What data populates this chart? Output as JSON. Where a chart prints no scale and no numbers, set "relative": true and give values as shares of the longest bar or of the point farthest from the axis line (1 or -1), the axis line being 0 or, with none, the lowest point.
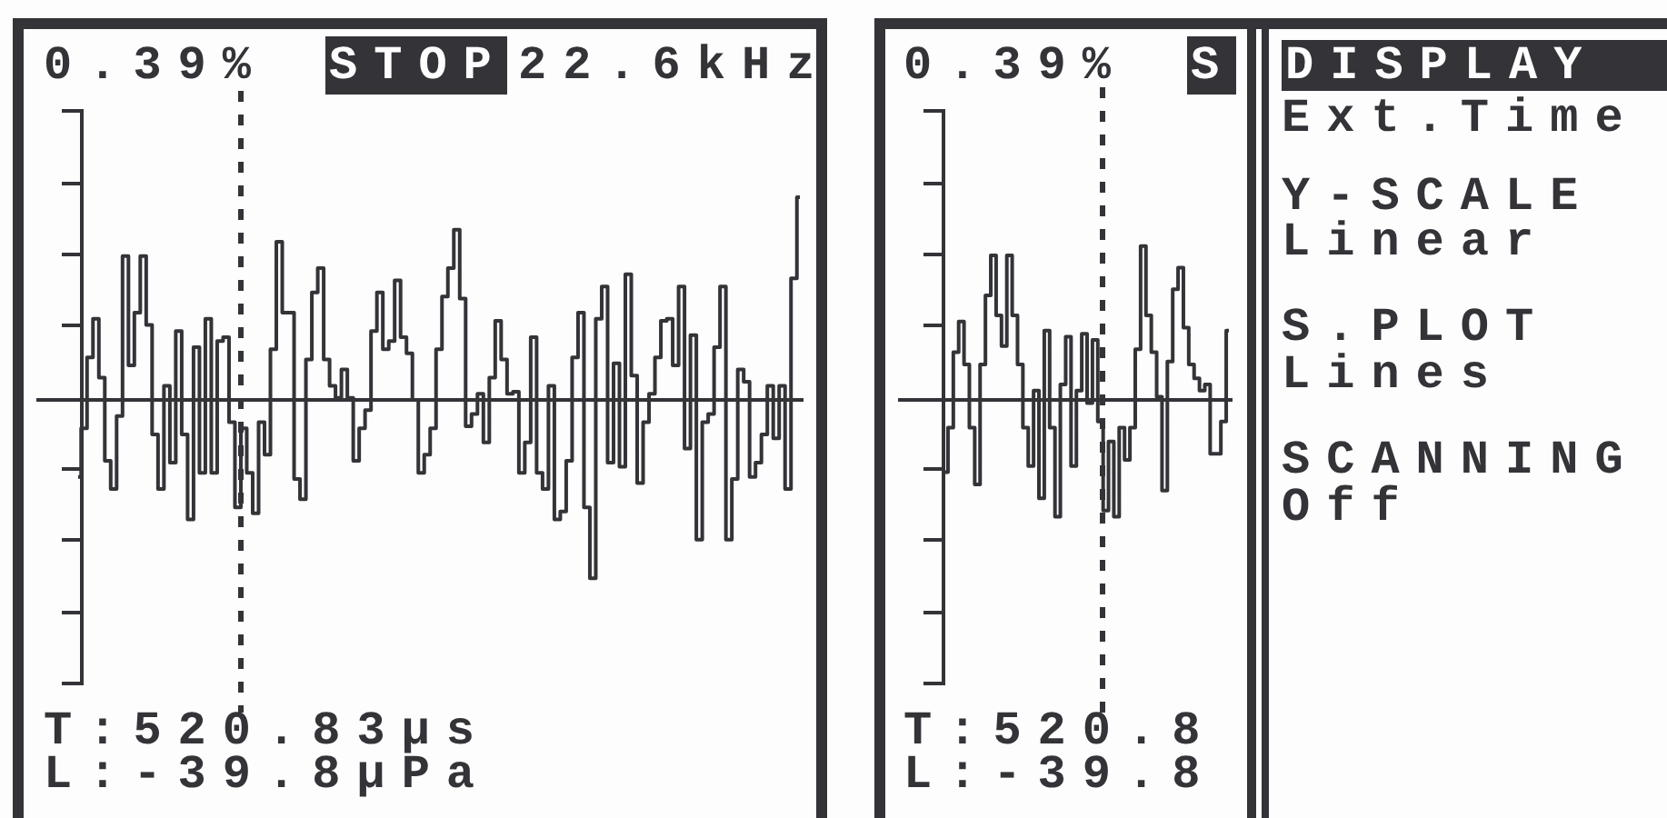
{
  "chart_data": [
    {
      "type": "step",
      "relative": true,
      "color": "#333338",
      "categories": [
        null,
        null,
        null,
        null,
        null,
        null,
        null,
        null,
        null,
        null,
        null,
        null,
        null,
        null,
        null,
        null,
        null,
        null,
        null,
        null,
        null,
        null,
        null,
        null,
        null,
        null,
        null,
        null,
        null,
        null,
        null,
        null,
        null,
        null,
        null,
        null,
        null,
        null,
        null,
        null,
        null,
        null,
        null,
        null,
        null,
        null,
        null,
        null,
        null,
        null,
        null,
        null,
        null,
        null,
        null,
        null,
        null,
        null,
        null,
        null,
        null,
        null,
        null,
        null,
        null,
        null,
        null,
        null,
        null,
        null,
        null,
        null,
        null,
        null,
        null,
        null,
        null,
        null,
        null,
        null,
        null,
        null,
        null,
        null,
        null,
        null,
        null,
        null,
        null,
        null,
        null,
        null,
        null,
        null,
        null,
        null,
        null,
        null,
        null,
        null,
        null,
        null,
        null,
        null,
        null,
        null,
        null,
        null,
        null,
        null,
        null,
        null,
        null,
        null,
        null,
        null,
        null,
        null,
        null,
        null,
        null,
        null,
        null
      ],
      "values": [
        -0.38,
        -0.14,
        0.21,
        0.4,
        0.11,
        -0.3,
        -0.44,
        -0.08,
        0.71,
        0.17,
        0.43,
        0.71,
        0.37,
        -0.17,
        -0.44,
        0.07,
        -0.31,
        0.34,
        -0.17,
        -0.59,
        0.26,
        -0.36,
        0.4,
        -0.36,
        0.29,
        0.31,
        -0.11,
        -0.53,
        -0.14,
        -0.36,
        -0.56,
        -0.11,
        -0.27,
        0.25,
        0.78,
        0.43,
        0.43,
        -0.39,
        -0.49,
        0.2,
        0.53,
        0.65,
        0.2,
        0.07,
        0.01,
        0.15,
        0.01,
        -0.3,
        -0.14,
        -0.05,
        0.34,
        0.53,
        0.25,
        0.29,
        0.59,
        0.31,
        0.23,
        0.0,
        -0.36,
        -0.27,
        -0.14,
        0.25,
        0.51,
        0.65,
        0.84,
        0.5,
        -0.13,
        -0.07,
        0.03,
        -0.21,
        0.11,
        0.39,
        0.2,
        0.03,
        0.04,
        -0.36,
        -0.21,
        0.31,
        -0.36,
        -0.44,
        0.07,
        -0.59,
        -0.55,
        -0.3,
        0.21,
        0.43,
        -0.53,
        -0.88,
        0.4,
        0.56,
        -0.31,
        0.18,
        -0.33,
        0.62,
        0.12,
        -0.41,
        -0.11,
        0.03,
        0.21,
        0.39,
        0.4,
        0.17,
        0.56,
        -0.24,
        0.32,
        -0.69,
        -0.11,
        -0.07,
        0.26,
        0.56,
        -0.69,
        -0.39,
        0.15,
        0.09,
        -0.38,
        -0.31,
        -0.17,
        0.07,
        -0.19,
        0.07,
        -0.44,
        0.6,
        1
      ],
      "annotations": [
        "0.39%",
        "STOP",
        "22.6kHz",
        "T:520.83µs",
        "L:-39.8µPa"
      ]
    },
    {
      "type": "step",
      "relative": true,
      "color": "#333338",
      "categories": [
        null,
        null,
        null,
        null,
        null,
        null,
        null,
        null,
        null,
        null,
        null,
        null,
        null,
        null,
        null,
        null,
        null,
        null,
        null,
        null,
        null,
        null,
        null,
        null,
        null,
        null,
        null,
        null,
        null,
        null,
        null,
        null,
        null,
        null,
        null,
        null,
        null,
        null,
        null,
        null,
        null,
        null,
        null,
        null,
        null,
        null,
        null,
        null,
        null,
        null,
        null,
        null,
        null,
        null
      ],
      "values": [
        -0.47,
        -0.18,
        0.31,
        0.51,
        0.23,
        -0.18,
        -0.55,
        0.23,
        0.68,
        0.94,
        0.55,
        0.35,
        0.94,
        0.55,
        0.23,
        -0.18,
        -0.43,
        0.06,
        -0.64,
        0.45,
        -0.18,
        -0.76,
        0.1,
        0.41,
        -0.43,
        0.06,
        0.43,
        -0.02,
        0.39,
        -0.14,
        -0.72,
        -0.27,
        -0.76,
        -0.18,
        -0.39,
        -0.18,
        0.33,
        1,
        0.55,
        0.31,
        0.02,
        -0.59,
        0.25,
        0.72,
        0.86,
        0.47,
        0.23,
        0.14,
        0.06,
        0.1,
        -0.35,
        -0.35,
        -0.14,
        0.45
      ],
      "annotations": [
        "0.39%",
        "S",
        "T:520.8",
        "L:-39.8"
      ]
    },
    {
      "type": "other",
      "annotations": [
        "DISPLAY",
        "Ext.Time",
        "Y-SCALE",
        "Linear",
        "S.PLOT",
        "Lines",
        "SCANNING",
        "Off"
      ]
    }
  ]
}
